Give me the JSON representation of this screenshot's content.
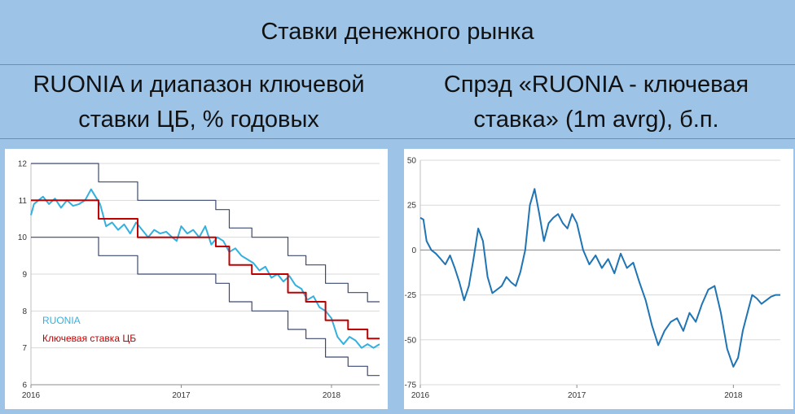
{
  "page": {
    "title": "Ставки денежного рынка",
    "left_subtitle_line1": "RUONIA и диапазон ключевой",
    "left_subtitle_line2": "ставки ЦБ, % годовых",
    "right_subtitle_line1": "Спрэд «RUONIA - ключевая",
    "right_subtitle_line2": "ставка» (1m avrg), б.п."
  },
  "colors": {
    "background": "#9dc3e6",
    "ruonia": "#33b0de",
    "key_rate": "#c00000",
    "corridor": "#3c4a72",
    "spread": "#1f74b4",
    "grid": "#d9d9d9"
  },
  "chart_data": [
    {
      "type": "line",
      "title": "",
      "xlabel": "",
      "ylabel": "",
      "x_ticks": [
        {
          "value": 2016.0,
          "label": "2016"
        },
        {
          "value": 2017.0,
          "label": "2017"
        },
        {
          "value": 2018.0,
          "label": "2018"
        }
      ],
      "xlim": [
        2016.0,
        2018.32
      ],
      "ylim": [
        6,
        12
      ],
      "y_ticks": [
        6,
        7,
        8,
        9,
        10,
        11,
        12
      ],
      "grid": "horizontal",
      "legend_placement": "bottom-left",
      "series": [
        {
          "name": "RUONIA",
          "color": "#33b0de",
          "x": [
            2016.0,
            2016.02,
            2016.05,
            2016.08,
            2016.12,
            2016.16,
            2016.2,
            2016.24,
            2016.28,
            2016.32,
            2016.36,
            2016.4,
            2016.43,
            2016.46,
            2016.5,
            2016.54,
            2016.58,
            2016.62,
            2016.66,
            2016.7,
            2016.74,
            2016.78,
            2016.82,
            2016.86,
            2016.9,
            2016.94,
            2016.97,
            2017.0,
            2017.04,
            2017.08,
            2017.12,
            2017.16,
            2017.2,
            2017.24,
            2017.28,
            2017.32,
            2017.36,
            2017.4,
            2017.44,
            2017.48,
            2017.52,
            2017.56,
            2017.6,
            2017.64,
            2017.68,
            2017.72,
            2017.76,
            2017.8,
            2017.84,
            2017.88,
            2017.92,
            2017.96,
            2018.0,
            2018.04,
            2018.08,
            2018.12,
            2018.16,
            2018.2,
            2018.24,
            2018.28,
            2018.32
          ],
          "values": [
            10.6,
            10.9,
            11.0,
            11.1,
            10.9,
            11.05,
            10.8,
            11.0,
            10.85,
            10.9,
            11.0,
            11.3,
            11.1,
            10.9,
            10.3,
            10.4,
            10.2,
            10.35,
            10.1,
            10.4,
            10.2,
            10.0,
            10.2,
            10.1,
            10.15,
            10.0,
            9.9,
            10.3,
            10.1,
            10.2,
            10.0,
            10.3,
            9.8,
            10.0,
            9.9,
            9.6,
            9.7,
            9.5,
            9.4,
            9.3,
            9.1,
            9.2,
            8.9,
            9.0,
            8.8,
            8.95,
            8.7,
            8.6,
            8.3,
            8.4,
            8.1,
            8.0,
            7.8,
            7.3,
            7.1,
            7.3,
            7.2,
            7.0,
            7.1,
            7.0,
            7.1
          ]
        },
        {
          "name": "Ключевая ставка ЦБ",
          "color": "#c00000",
          "x": [
            2016.0,
            2016.45,
            2016.45,
            2016.71,
            2016.71,
            2017.23,
            2017.23,
            2017.32,
            2017.32,
            2017.47,
            2017.47,
            2017.71,
            2017.71,
            2017.83,
            2017.83,
            2017.96,
            2017.96,
            2018.11,
            2018.11,
            2018.24,
            2018.24,
            2018.32
          ],
          "values": [
            11.0,
            11.0,
            10.5,
            10.5,
            10.0,
            10.0,
            9.75,
            9.75,
            9.25,
            9.25,
            9.0,
            9.0,
            8.5,
            8.5,
            8.25,
            8.25,
            7.75,
            7.75,
            7.5,
            7.5,
            7.25,
            7.25
          ]
        },
        {
          "name": "",
          "color": "#3c4a72",
          "x": [
            2016.0,
            2016.45,
            2016.45,
            2016.71,
            2016.71,
            2017.23,
            2017.23,
            2017.32,
            2017.32,
            2017.47,
            2017.47,
            2017.71,
            2017.71,
            2017.83,
            2017.83,
            2017.96,
            2017.96,
            2018.11,
            2018.11,
            2018.24,
            2018.24,
            2018.32
          ],
          "values": [
            12.0,
            12.0,
            11.5,
            11.5,
            11.0,
            11.0,
            10.75,
            10.75,
            10.25,
            10.25,
            10.0,
            10.0,
            9.5,
            9.5,
            9.25,
            9.25,
            8.75,
            8.75,
            8.5,
            8.5,
            8.25,
            8.25
          ]
        },
        {
          "name": "",
          "color": "#3c4a72",
          "x": [
            2016.0,
            2016.45,
            2016.45,
            2016.71,
            2016.71,
            2017.23,
            2017.23,
            2017.32,
            2017.32,
            2017.47,
            2017.47,
            2017.71,
            2017.71,
            2017.83,
            2017.83,
            2017.96,
            2017.96,
            2018.11,
            2018.11,
            2018.24,
            2018.24,
            2018.32
          ],
          "values": [
            10.0,
            10.0,
            9.5,
            9.5,
            9.0,
            9.0,
            8.75,
            8.75,
            8.25,
            8.25,
            8.0,
            8.0,
            7.5,
            7.5,
            7.25,
            7.25,
            6.75,
            6.75,
            6.5,
            6.5,
            6.25,
            6.25
          ]
        }
      ]
    },
    {
      "type": "line",
      "title": "",
      "xlabel": "",
      "ylabel": "",
      "x_ticks": [
        {
          "value": 2016.0,
          "label": "2016"
        },
        {
          "value": 2017.0,
          "label": "2017"
        },
        {
          "value": 2018.0,
          "label": "2018"
        }
      ],
      "xlim": [
        2016.0,
        2018.3
      ],
      "ylim": [
        -75,
        50
      ],
      "y_ticks": [
        -75,
        -50,
        -25,
        0,
        25,
        50
      ],
      "grid": "horizontal",
      "legend_placement": "none",
      "series": [
        {
          "name": "",
          "color": "#1f74b4",
          "x": [
            2016.0,
            2016.02,
            2016.04,
            2016.07,
            2016.1,
            2016.13,
            2016.16,
            2016.19,
            2016.22,
            2016.25,
            2016.28,
            2016.31,
            2016.34,
            2016.37,
            2016.4,
            2016.43,
            2016.46,
            2016.49,
            2016.52,
            2016.55,
            2016.58,
            2016.61,
            2016.64,
            2016.67,
            2016.7,
            2016.73,
            2016.76,
            2016.79,
            2016.82,
            2016.85,
            2016.88,
            2016.91,
            2016.94,
            2016.97,
            2017.0,
            2017.04,
            2017.08,
            2017.12,
            2017.16,
            2017.2,
            2017.24,
            2017.28,
            2017.32,
            2017.36,
            2017.4,
            2017.44,
            2017.48,
            2017.52,
            2017.56,
            2017.6,
            2017.64,
            2017.68,
            2017.72,
            2017.76,
            2017.8,
            2017.84,
            2017.88,
            2017.92,
            2017.96,
            2018.0,
            2018.03,
            2018.06,
            2018.09,
            2018.12,
            2018.15,
            2018.18,
            2018.21,
            2018.24,
            2018.27,
            2018.3
          ],
          "values": [
            18,
            17,
            5,
            0,
            -2,
            -5,
            -8,
            -3,
            -10,
            -18,
            -28,
            -20,
            -5,
            12,
            5,
            -15,
            -24,
            -22,
            -20,
            -15,
            -18,
            -20,
            -12,
            0,
            25,
            34,
            20,
            5,
            15,
            18,
            20,
            15,
            12,
            20,
            15,
            0,
            -8,
            -3,
            -10,
            -5,
            -13,
            -2,
            -10,
            -7,
            -18,
            -28,
            -42,
            -53,
            -45,
            -40,
            -38,
            -45,
            -35,
            -40,
            -30,
            -22,
            -20,
            -35,
            -55,
            -65,
            -60,
            -45,
            -35,
            -25,
            -27,
            -30,
            -28,
            -26,
            -25,
            -25
          ]
        }
      ]
    }
  ]
}
